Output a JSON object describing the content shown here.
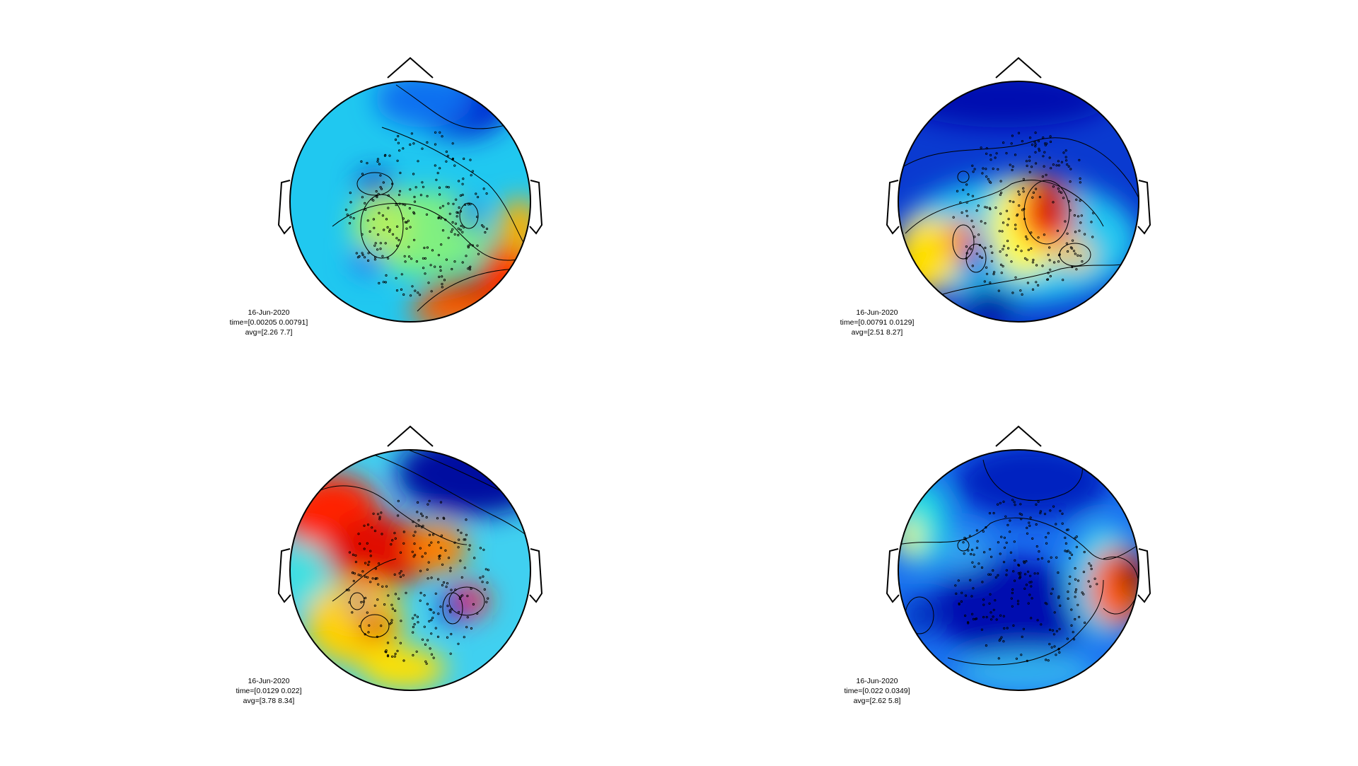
{
  "figure": {
    "background": "#ffffff",
    "head_outline_color": "#000000",
    "contour_color": "#000000",
    "sensor_marker": "dot",
    "colormap": "jet",
    "colormap_stops": [
      "#00008f",
      "#0000ff",
      "#0080ff",
      "#00ffff",
      "#80ff80",
      "#ffff00",
      "#ff8000",
      "#ff0000",
      "#800000"
    ]
  },
  "chart_data": [
    {
      "type": "heatmap",
      "subtype": "topoplot",
      "annotation": {
        "date": "16-Jun-2020",
        "time": "time=[0.00205 0.00791]",
        "avg": "avg=[2.26 7.7]"
      },
      "time_window": [
        0.00205,
        0.00791
      ],
      "avg_range": [
        2.26,
        7.7
      ],
      "hotspots": [
        {
          "region": "right-posterior",
          "level": "max"
        },
        {
          "region": "frontal-right",
          "level": "min"
        }
      ]
    },
    {
      "type": "heatmap",
      "subtype": "topoplot",
      "annotation": {
        "date": "16-Jun-2020",
        "time": "time=[0.00791 0.0129]",
        "avg": "avg=[2.51 8.27]"
      },
      "time_window": [
        0.00791,
        0.0129
      ],
      "avg_range": [
        2.51,
        8.27
      ],
      "hotspots": [
        {
          "region": "central-right",
          "level": "max"
        },
        {
          "region": "frontal",
          "level": "min"
        }
      ]
    },
    {
      "type": "heatmap",
      "subtype": "topoplot",
      "annotation": {
        "date": "16-Jun-2020",
        "time": "time=[0.0129 0.022]",
        "avg": "avg=[3.78 8.34]"
      },
      "time_window": [
        0.0129,
        0.022
      ],
      "avg_range": [
        3.78,
        8.34
      ],
      "hotspots": [
        {
          "region": "left-central",
          "level": "max"
        },
        {
          "region": "frontal-right",
          "level": "min"
        }
      ]
    },
    {
      "type": "heatmap",
      "subtype": "topoplot",
      "annotation": {
        "date": "16-Jun-2020",
        "time": "time=[0.022 0.0349]",
        "avg": "avg=[2.62 5.8]"
      },
      "time_window": [
        0.022,
        0.0349
      ],
      "avg_range": [
        2.62,
        5.8
      ],
      "hotspots": [
        {
          "region": "right-temporal",
          "level": "max"
        },
        {
          "region": "central-posterior",
          "level": "min"
        }
      ]
    }
  ]
}
